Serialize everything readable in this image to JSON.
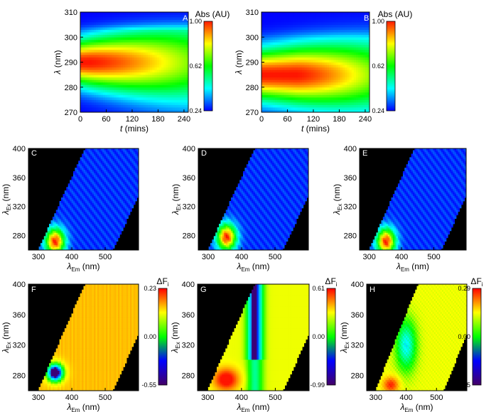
{
  "chart_data": [
    {
      "panel": "A",
      "type": "heatmap",
      "style": "absorbance",
      "xlabel": "t",
      "xunit": " (mins)",
      "ylabel": "λ",
      "yunit": " (nm)",
      "xlim": [
        0,
        250
      ],
      "ylim": [
        270,
        310
      ],
      "xticks": [
        "0",
        "60",
        "120",
        "180",
        "240"
      ],
      "yticks": [
        "270",
        "280",
        "290",
        "300",
        "310"
      ],
      "peak": {
        "x": 20,
        "y": 290
      },
      "peak_decay_to": 240,
      "colorbar": {
        "title": "Abs (AU)",
        "ticks": [
          "1.00",
          "0.62",
          "0.24"
        ],
        "colors": [
          "#ff1a00",
          "#ffff00",
          "#00ff00",
          "#00ffff",
          "#0000ff"
        ]
      }
    },
    {
      "panel": "B",
      "type": "heatmap",
      "style": "absorbance",
      "xlabel": "t",
      "xunit": " (mins)",
      "ylabel": "λ",
      "yunit": " (nm)",
      "xlim": [
        0,
        250
      ],
      "ylim": [
        270,
        310
      ],
      "xticks": [
        "0",
        "60",
        "120",
        "180",
        "240"
      ],
      "yticks": [
        "270",
        "280",
        "290",
        "300",
        "310"
      ],
      "peak": {
        "x": 80,
        "y": 285
      },
      "peak_decay_to": 250,
      "colorbar": {
        "title": "Abs (AU)",
        "ticks": [
          "1.00",
          "0.62",
          "0.24"
        ],
        "colors": [
          "#ff1a00",
          "#ffff00",
          "#00ff00",
          "#00ffff",
          "#0000ff"
        ]
      }
    },
    {
      "panel": "C",
      "type": "heatmap",
      "style": "eem",
      "xlabel": "λ",
      "xsub": "Em",
      "xunit": " (nm)",
      "ylabel": "λ",
      "ysub": "Ex",
      "yunit": " (nm)",
      "xlim": [
        270,
        600
      ],
      "ylim": [
        260,
        400
      ],
      "xticks": [
        "300",
        "400",
        "500"
      ],
      "yticks": [
        "280",
        "320",
        "360",
        "400"
      ],
      "peak": {
        "em": 350,
        "ex": 272
      }
    },
    {
      "panel": "D",
      "type": "heatmap",
      "style": "eem",
      "xlabel": "λ",
      "xsub": "Em",
      "xunit": " (nm)",
      "ylabel": "λ",
      "ysub": "Ex",
      "yunit": " (nm)",
      "xlim": [
        270,
        600
      ],
      "ylim": [
        260,
        400
      ],
      "xticks": [
        "300",
        "400",
        "500"
      ],
      "yticks": [
        "280",
        "320",
        "360",
        "400"
      ],
      "peak": {
        "em": 355,
        "ex": 278
      }
    },
    {
      "panel": "E",
      "type": "heatmap",
      "style": "eem",
      "xlabel": "λ",
      "xsub": "Em",
      "xunit": " (nm)",
      "ylabel": "λ",
      "ysub": "Ex",
      "yunit": " (nm)",
      "xlim": [
        270,
        600
      ],
      "ylim": [
        260,
        400
      ],
      "xticks": [
        "300",
        "400",
        "500"
      ],
      "yticks": [
        "280",
        "320",
        "360",
        "400"
      ],
      "peak": {
        "em": 352,
        "ex": 272
      }
    },
    {
      "panel": "F",
      "type": "heatmap",
      "style": "diff",
      "variant": "F",
      "xlabel": "λ",
      "xsub": "Em",
      "xunit": " (nm)",
      "ylabel": "λ",
      "ysub": "Ex",
      "yunit": " (nm)",
      "xlim": [
        270,
        600
      ],
      "ylim": [
        260,
        400
      ],
      "xticks": [
        "300",
        "400",
        "500"
      ],
      "yticks": [
        "280",
        "320",
        "360",
        "400"
      ],
      "colorbar": {
        "title": "ΔF",
        "title_sub": "i",
        "ticks": [
          "0.23",
          "0.00",
          "-0.55"
        ],
        "colors": [
          "#ff0000",
          "#ffff00",
          "#00ff00",
          "#0000ff",
          "#440066"
        ]
      }
    },
    {
      "panel": "G",
      "type": "heatmap",
      "style": "diff",
      "variant": "G",
      "xlabel": "λ",
      "xsub": "Em",
      "xunit": " (nm)",
      "ylabel": "λ",
      "ysub": "Ex",
      "yunit": " (nm)",
      "xlim": [
        270,
        600
      ],
      "ylim": [
        260,
        400
      ],
      "xticks": [
        "300",
        "400",
        "500"
      ],
      "yticks": [
        "280",
        "320",
        "360",
        "400"
      ],
      "colorbar": {
        "title": "ΔF",
        "title_sub": "i",
        "ticks": [
          "0.61",
          "0.00",
          "-0.99"
        ],
        "colors": [
          "#ff0000",
          "#ffff00",
          "#00ff00",
          "#0000ff",
          "#440066"
        ]
      }
    },
    {
      "panel": "H",
      "type": "heatmap",
      "style": "diff",
      "variant": "H",
      "xlabel": "λ",
      "xsub": "Em",
      "xunit": " (nm)",
      "ylabel": "λ",
      "ysub": "Ex",
      "yunit": " (nm)",
      "xlim": [
        270,
        600
      ],
      "ylim": [
        260,
        400
      ],
      "xticks": [
        "300",
        "400",
        "500"
      ],
      "yticks": [
        "280",
        "320",
        "360",
        "400"
      ],
      "colorbar": {
        "title": "ΔF",
        "title_sub": "i",
        "ticks": [
          "0.29",
          "0.00",
          "-0.35"
        ],
        "colors": [
          "#ff0000",
          "#ffff00",
          "#00ff00",
          "#0000ff",
          "#440066"
        ]
      }
    }
  ]
}
